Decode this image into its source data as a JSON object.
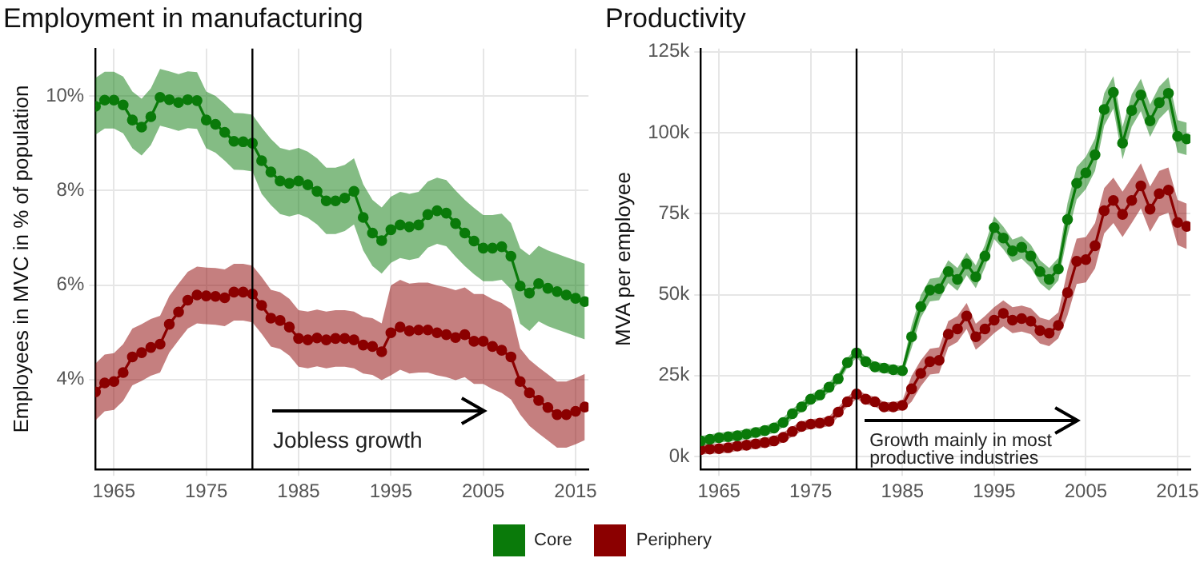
{
  "chart_data": [
    {
      "type": "line",
      "title": "Employment in manufacturing",
      "ylabel": "Employees in MVC in % of population",
      "x": [
        1963,
        1964,
        1965,
        1966,
        1967,
        1968,
        1969,
        1970,
        1971,
        1972,
        1973,
        1974,
        1975,
        1976,
        1977,
        1978,
        1979,
        1980,
        1981,
        1982,
        1983,
        1984,
        1985,
        1986,
        1987,
        1988,
        1989,
        1990,
        1991,
        1992,
        1993,
        1994,
        1995,
        1996,
        1997,
        1998,
        1999,
        2000,
        2001,
        2002,
        2003,
        2004,
        2005,
        2006,
        2007,
        2008,
        2009,
        2010,
        2011,
        2012,
        2013,
        2014,
        2015,
        2016
      ],
      "xlim": [
        1963,
        2016.4
      ],
      "xticks": [
        1965,
        1975,
        1985,
        1995,
        2005,
        2015
      ],
      "ylim": [
        2.1,
        11
      ],
      "yticks": [
        {
          "value": 4,
          "label": "4%"
        },
        {
          "value": 6,
          "label": "6%"
        },
        {
          "value": 8,
          "label": "8%"
        },
        {
          "value": 10,
          "label": "10%"
        }
      ],
      "grid": true,
      "legend": "bottom",
      "marker": "circle",
      "ref_lines": [
        {
          "axis": "x",
          "value": 1980,
          "color": "#000000"
        }
      ],
      "annotations": [
        "Jobless growth"
      ],
      "series": [
        {
          "name": "Core",
          "color": "#0a7a0a",
          "values": [
            9.78,
            9.91,
            9.91,
            9.81,
            9.49,
            9.34,
            9.56,
            9.97,
            9.92,
            9.86,
            9.92,
            9.9,
            9.49,
            9.4,
            9.23,
            9.04,
            9.03,
            9.0,
            8.63,
            8.39,
            8.2,
            8.15,
            8.2,
            8.12,
            7.98,
            7.78,
            7.78,
            7.84,
            7.98,
            7.43,
            7.1,
            6.94,
            7.17,
            7.27,
            7.23,
            7.27,
            7.49,
            7.57,
            7.52,
            7.3,
            7.1,
            6.93,
            6.78,
            6.78,
            6.81,
            6.61,
            5.98,
            5.83,
            6.03,
            5.93,
            5.86,
            5.79,
            5.72,
            5.65
          ],
          "upper": [
            10.38,
            10.51,
            10.51,
            10.41,
            10.09,
            9.94,
            10.16,
            10.57,
            10.52,
            10.46,
            10.52,
            10.5,
            10.09,
            10.0,
            9.83,
            9.64,
            9.63,
            9.6,
            9.33,
            9.09,
            8.9,
            8.85,
            8.9,
            8.82,
            8.68,
            8.48,
            8.48,
            8.54,
            8.68,
            8.13,
            7.8,
            7.64,
            7.87,
            7.97,
            7.93,
            7.97,
            8.19,
            8.27,
            8.22,
            8.0,
            7.8,
            7.63,
            7.48,
            7.48,
            7.51,
            7.31,
            6.78,
            6.63,
            6.83,
            6.73,
            6.66,
            6.59,
            6.52,
            6.45
          ],
          "lower": [
            9.18,
            9.31,
            9.31,
            9.21,
            8.89,
            8.74,
            8.96,
            9.37,
            9.32,
            9.26,
            9.32,
            9.3,
            8.89,
            8.8,
            8.63,
            8.44,
            8.43,
            8.4,
            7.93,
            7.69,
            7.5,
            7.45,
            7.5,
            7.42,
            7.28,
            7.08,
            7.08,
            7.14,
            7.28,
            6.73,
            6.4,
            6.24,
            6.47,
            6.57,
            6.53,
            6.57,
            6.79,
            6.87,
            6.82,
            6.6,
            6.4,
            6.23,
            6.08,
            6.08,
            6.11,
            5.91,
            5.18,
            5.03,
            5.23,
            5.13,
            5.06,
            4.99,
            4.92,
            4.85
          ]
        },
        {
          "name": "Periphery",
          "color": "#8b0000",
          "values": [
            3.74,
            3.93,
            3.96,
            4.15,
            4.48,
            4.57,
            4.68,
            4.75,
            5.17,
            5.43,
            5.68,
            5.79,
            5.77,
            5.76,
            5.73,
            5.85,
            5.85,
            5.81,
            5.57,
            5.3,
            5.25,
            5.11,
            4.87,
            4.84,
            4.88,
            4.84,
            4.87,
            4.87,
            4.84,
            4.73,
            4.7,
            4.59,
            4.99,
            5.11,
            5.03,
            5.05,
            5.05,
            4.99,
            4.95,
            4.89,
            4.95,
            4.81,
            4.81,
            4.7,
            4.62,
            4.48,
            3.96,
            3.72,
            3.56,
            3.41,
            3.26,
            3.26,
            3.33,
            3.42
          ],
          "upper": [
            4.34,
            4.53,
            4.56,
            4.75,
            5.08,
            5.17,
            5.28,
            5.35,
            5.77,
            6.03,
            6.28,
            6.39,
            6.37,
            6.36,
            6.33,
            6.45,
            6.45,
            6.41,
            6.17,
            5.9,
            5.85,
            5.71,
            5.47,
            5.44,
            5.48,
            5.44,
            5.47,
            5.47,
            5.44,
            5.33,
            5.3,
            5.19,
            5.99,
            6.11,
            6.03,
            6.05,
            6.05,
            5.99,
            5.95,
            5.89,
            5.95,
            5.81,
            5.81,
            5.7,
            5.62,
            5.48,
            4.66,
            4.42,
            4.26,
            4.11,
            3.96,
            3.96,
            4.03,
            4.12
          ],
          "lower": [
            3.14,
            3.33,
            3.36,
            3.55,
            3.88,
            3.97,
            4.08,
            4.15,
            4.57,
            4.83,
            5.08,
            5.19,
            5.17,
            5.16,
            5.13,
            5.25,
            5.25,
            5.21,
            4.97,
            4.7,
            4.65,
            4.51,
            4.27,
            4.24,
            4.28,
            4.24,
            4.27,
            4.27,
            4.24,
            4.13,
            4.1,
            3.99,
            4.09,
            4.21,
            4.13,
            4.15,
            4.15,
            4.09,
            4.05,
            3.99,
            4.05,
            3.91,
            3.91,
            3.8,
            3.72,
            3.58,
            3.26,
            3.02,
            2.86,
            2.71,
            2.56,
            2.56,
            2.63,
            2.72
          ]
        }
      ]
    },
    {
      "type": "line",
      "title": "Productivity",
      "ylabel": "MVA per employee",
      "x": [
        1963,
        1964,
        1965,
        1966,
        1967,
        1968,
        1969,
        1970,
        1971,
        1972,
        1973,
        1974,
        1975,
        1976,
        1977,
        1978,
        1979,
        1980,
        1981,
        1982,
        1983,
        1984,
        1985,
        1986,
        1987,
        1988,
        1989,
        1990,
        1991,
        1992,
        1993,
        1994,
        1995,
        1996,
        1997,
        1998,
        1999,
        2000,
        2001,
        2002,
        2003,
        2004,
        2005,
        2006,
        2007,
        2008,
        2009,
        2010,
        2011,
        2012,
        2013,
        2014,
        2015,
        2016
      ],
      "xlim": [
        1963,
        2016.4
      ],
      "xticks": [
        1965,
        1975,
        1985,
        1995,
        2005,
        2015
      ],
      "ylim": [
        -4,
        126
      ],
      "yticks": [
        {
          "value": 0,
          "label": "0k"
        },
        {
          "value": 25,
          "label": "25k"
        },
        {
          "value": 50,
          "label": "50k"
        },
        {
          "value": 75,
          "label": "75k"
        },
        {
          "value": 100,
          "label": "100k"
        },
        {
          "value": 125,
          "label": "125k"
        }
      ],
      "grid": true,
      "legend": "bottom",
      "marker": "circle",
      "ref_lines": [
        {
          "axis": "x",
          "value": 1980,
          "color": "#000000"
        }
      ],
      "annotations": [
        "Growth mainly in most productive industries"
      ],
      "series": [
        {
          "name": "Core",
          "color": "#0a7a0a",
          "values": [
            4.8,
            5.3,
            5.8,
            6.1,
            6.4,
            6.9,
            7.4,
            8.0,
            8.8,
            10.5,
            13.2,
            15.3,
            17.7,
            19.0,
            21.4,
            24.0,
            29.0,
            32.0,
            29.3,
            27.7,
            27.3,
            26.8,
            26.5,
            37.0,
            46.3,
            51.4,
            51.8,
            57.1,
            54.7,
            59.5,
            55.5,
            61.9,
            70.7,
            67.5,
            63.5,
            64.6,
            61.9,
            57.1,
            54.7,
            57.9,
            73.2,
            84.4,
            87.6,
            93.2,
            107.2,
            112.5,
            96.8,
            106.9,
            111.7,
            103.7,
            109.3,
            112.2,
            98.9,
            98.1
          ],
          "upper": [
            6.3,
            6.8,
            7.3,
            7.6,
            7.9,
            8.4,
            8.9,
            9.5,
            10.3,
            12.0,
            14.7,
            16.8,
            19.2,
            20.5,
            22.9,
            25.5,
            30.5,
            33.5,
            30.8,
            29.2,
            28.8,
            28.3,
            28.0,
            40.5,
            49.8,
            54.9,
            55.3,
            60.6,
            58.2,
            63.0,
            59.0,
            65.4,
            74.2,
            71.0,
            67.0,
            68.1,
            65.4,
            60.6,
            58.2,
            61.4,
            78.2,
            89.4,
            92.6,
            98.2,
            112.2,
            117.5,
            101.8,
            111.9,
            116.7,
            108.7,
            114.3,
            117.2,
            103.9,
            103.1
          ],
          "lower": [
            3.3,
            3.8,
            4.3,
            4.6,
            4.9,
            5.4,
            5.9,
            6.5,
            7.3,
            9.0,
            11.7,
            13.8,
            16.2,
            17.5,
            19.9,
            22.5,
            27.5,
            30.5,
            27.8,
            26.2,
            25.8,
            25.3,
            25.0,
            33.5,
            42.8,
            47.9,
            48.3,
            53.6,
            51.2,
            56.0,
            52.0,
            58.4,
            67.2,
            64.0,
            60.0,
            61.1,
            58.4,
            53.6,
            51.2,
            54.4,
            68.2,
            79.4,
            82.6,
            88.2,
            102.2,
            107.5,
            91.8,
            101.9,
            106.7,
            98.7,
            104.3,
            107.2,
            93.9,
            93.1
          ]
        },
        {
          "name": "Periphery",
          "color": "#8b0000",
          "values": [
            2.1,
            2.3,
            2.4,
            2.7,
            3.2,
            3.5,
            3.9,
            4.3,
            4.8,
            5.9,
            7.7,
            9.3,
            10.0,
            10.3,
            10.9,
            13.7,
            16.9,
            19.3,
            17.7,
            16.9,
            15.3,
            15.3,
            15.8,
            20.9,
            25.7,
            29.3,
            29.7,
            37.8,
            39.4,
            43.4,
            37.0,
            39.4,
            42.1,
            44.2,
            42.1,
            42.6,
            41.8,
            38.9,
            38.1,
            40.5,
            50.6,
            60.3,
            60.8,
            65.1,
            75.9,
            79.1,
            74.8,
            79.1,
            83.6,
            76.4,
            81.2,
            82.3,
            72.3,
            71.1
          ],
          "upper": [
            3.6,
            3.8,
            3.9,
            4.2,
            4.7,
            5.0,
            5.4,
            5.8,
            6.3,
            7.4,
            9.2,
            10.8,
            11.5,
            11.8,
            12.4,
            15.2,
            18.4,
            20.8,
            19.2,
            18.4,
            16.8,
            16.8,
            17.3,
            24.9,
            29.7,
            33.3,
            33.7,
            41.8,
            43.4,
            47.4,
            41.0,
            43.4,
            46.1,
            48.2,
            46.1,
            46.6,
            45.8,
            42.9,
            42.1,
            44.5,
            57.6,
            67.3,
            67.8,
            72.1,
            82.9,
            86.1,
            81.8,
            86.1,
            90.6,
            83.4,
            88.2,
            89.3,
            79.3,
            78.1
          ],
          "lower": [
            0.6,
            0.8,
            0.9,
            1.2,
            1.7,
            2.0,
            2.4,
            2.8,
            3.3,
            4.4,
            6.2,
            7.8,
            8.5,
            8.8,
            9.4,
            12.2,
            15.4,
            17.8,
            16.2,
            15.4,
            13.8,
            13.8,
            14.3,
            16.9,
            21.7,
            25.3,
            25.7,
            33.8,
            35.4,
            39.4,
            33.0,
            35.4,
            38.1,
            40.2,
            38.1,
            38.6,
            37.8,
            34.9,
            34.1,
            36.5,
            43.6,
            53.3,
            53.8,
            58.1,
            68.9,
            72.1,
            67.8,
            72.1,
            76.6,
            69.4,
            74.2,
            75.3,
            65.3,
            64.1
          ]
        }
      ]
    }
  ]
}
